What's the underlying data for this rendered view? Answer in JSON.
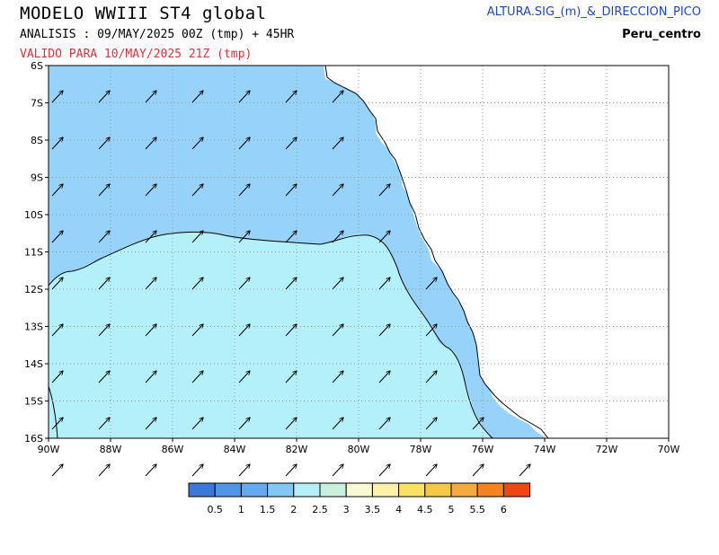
{
  "header": {
    "title": "MODELO WWIII ST4 global",
    "analysis": "ANALISIS : 09/MAY/2025 00Z  (tmp) + 45HR",
    "valid": "VALIDO PARA  10/MAY/2025 21Z  (tmp)",
    "variable": "ALTURA.SIG_(m)_&_DIRECCION_PICO",
    "region": "Peru_centro"
  },
  "map": {
    "lon_range": [
      -90,
      -70
    ],
    "lat_range": [
      -16,
      -6
    ],
    "lat_labels": [
      "6S",
      "7S",
      "8S",
      "9S",
      "10S",
      "11S",
      "12S",
      "13S",
      "14S",
      "15S",
      "16S"
    ],
    "lon_labels": [
      "90W",
      "88W",
      "86W",
      "84W",
      "82W",
      "80W",
      "78W",
      "76W",
      "74W",
      "72W",
      "70W"
    ],
    "grid": true,
    "colors": {
      "land": "#ffffff",
      "sea_1_5_2": "#96d2fa",
      "sea_2_2_5": "#b4f0fa",
      "outline": "#000000"
    },
    "wave_direction_arrows": "toward NE"
  },
  "legend": {
    "colors": [
      "#3c78d8",
      "#5096e6",
      "#64aaf0",
      "#82c8f5",
      "#b4f0fa",
      "#c8f0dc",
      "#fafad2",
      "#fff0aa",
      "#fae164",
      "#f5c846",
      "#f5aa3c",
      "#f5821e",
      "#f04614"
    ],
    "labels": [
      "0.5",
      "1",
      "1.5",
      "2",
      "2.5",
      "3",
      "3.5",
      "4",
      "4.5",
      "5",
      "5.5",
      "6"
    ]
  }
}
